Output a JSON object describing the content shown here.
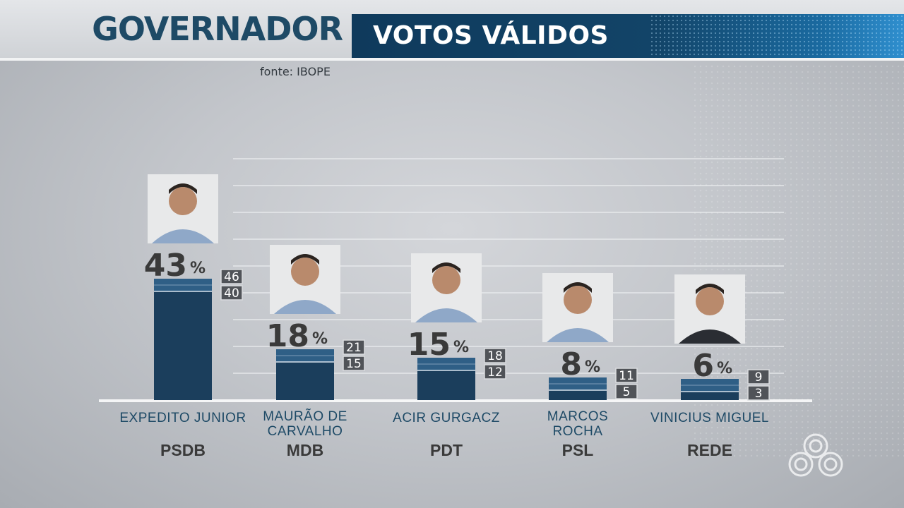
{
  "header": {
    "title": "GOVERNADOR",
    "subtitle": "VOTOS VÁLIDOS",
    "source": "fonte: IBOPE"
  },
  "colors": {
    "bar": "#1b3e5c",
    "bar_band": "#2f5f86",
    "title": "#1e4a66"
  },
  "chart_data": {
    "type": "bar",
    "title": "",
    "categories": [
      "EXPEDITO JUNIOR",
      "MAURÃO DE CARVALHO",
      "ACIR GURGACZ",
      "MARCOS ROCHA",
      "VINICIUS MIGUEL"
    ],
    "name_lines": [
      [
        "EXPEDITO JUNIOR"
      ],
      [
        "MAURÃO DE",
        "CARVALHO"
      ],
      [
        "ACIR GURGACZ"
      ],
      [
        "MARCOS",
        "ROCHA"
      ],
      [
        "VINICIUS MIGUEL"
      ]
    ],
    "parties": [
      "PSDB",
      "MDB",
      "PDT",
      "PSL",
      "REDE"
    ],
    "values": [
      43,
      18,
      15,
      8,
      6
    ],
    "value_labels": [
      "43",
      "18",
      "15",
      "8",
      "6"
    ],
    "unit": "%",
    "upper": [
      46,
      21,
      18,
      11,
      9
    ],
    "lower": [
      40,
      15,
      12,
      5,
      3
    ],
    "ylim": [
      0,
      52
    ],
    "grid": true,
    "photos": [
      "candidate-photo-expedito-junior",
      "candidate-photo-maurao-de-carvalho",
      "candidate-photo-acir-gurgacz",
      "candidate-photo-marcos-rocha",
      "candidate-photo-vinicius-miguel"
    ]
  }
}
